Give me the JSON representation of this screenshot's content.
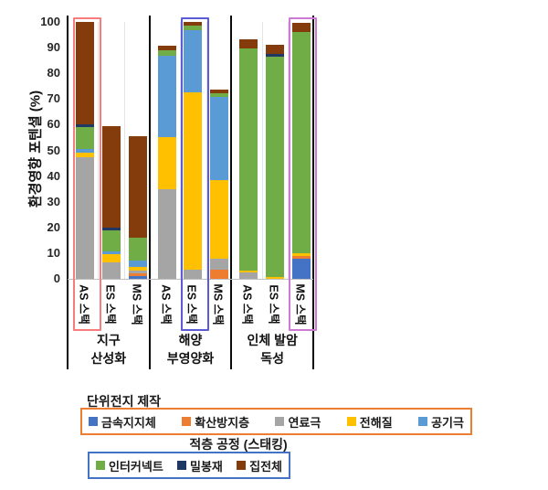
{
  "chart_data": {
    "type": "bar",
    "stacked": true,
    "title": "",
    "xlabel": "",
    "ylabel": "환경영향 포텐셜 (%)",
    "ylim": [
      0,
      100
    ],
    "yticks": [
      0,
      10,
      20,
      30,
      40,
      50,
      60,
      70,
      80,
      90,
      100
    ],
    "grid": false,
    "legend_position": "bottom",
    "series_order": [
      "금속지지체",
      "확산방지층",
      "연료극",
      "전해질",
      "공기극",
      "인터커넥트",
      "밀봉재",
      "집전체"
    ],
    "series_colors": {
      "금속지지체": "#4472C4",
      "확산방지층": "#ED7D31",
      "연료극": "#A5A5A5",
      "전해질": "#FFC000",
      "공기극": "#5B9BD5",
      "인터커넥트": "#70AD47",
      "밀봉재": "#1F3864",
      "집전체": "#843C0C"
    },
    "groups": [
      {
        "label_lines": [
          "지구",
          "산성화"
        ],
        "bars": [
          {
            "label": "AS 스택",
            "highlight_box": "#F87C7C",
            "values": {
              "연료극": 47.5,
              "전해질": 1.5,
              "공기극": 1.5,
              "인터커넥트": 8.5,
              "밀봉재": 1,
              "집전체": 40
            }
          },
          {
            "label": "ES 스택",
            "values": {
              "연료극": 6.5,
              "전해질": 3,
              "공기극": 1,
              "인터커넥트": 8.5,
              "밀봉재": 1,
              "집전체": 39.5
            }
          },
          {
            "label": "MS 스택",
            "values": {
              "금속지지체": 1,
              "확산방지층": 1,
              "연료극": 1.3,
              "전해질": 1.4,
              "공기극": 2.3,
              "인터커넥트": 9,
              "집전체": 39.5
            }
          }
        ]
      },
      {
        "label_lines": [
          "해양",
          "부영양화"
        ],
        "bars": [
          {
            "label": "AS 스택",
            "values": {
              "연료극": 35,
              "전해질": 20.2,
              "공기극": 31.8,
              "인터커넥트": 2,
              "집전체": 1.6
            }
          },
          {
            "label": "ES 스택",
            "highlight_box": "#5B5BD5",
            "values": {
              "연료극": 3.6,
              "전해질": 68.9,
              "공기극": 24.2,
              "인터커넥트": 1.8,
              "집전체": 1.5
            }
          },
          {
            "label": "MS 스택",
            "values": {
              "확산방지층": 3.6,
              "연료극": 4.1,
              "전해질": 30.8,
              "공기극": 32.4,
              "인터커넥트": 1.2,
              "집전체": 1.4
            }
          }
        ]
      },
      {
        "label_lines": [
          "인체 발암",
          "독성"
        ],
        "bars": [
          {
            "label": "AS 스택",
            "values": {
              "연료극": 2.4,
              "전해질": 0.9,
              "인터커넥트": 86.4,
              "집전체": 3.5
            }
          },
          {
            "label": "ES 스택",
            "values": {
              "전해질": 0.8,
              "인터커넥트": 85.7,
              "밀봉재": 1,
              "집전체": 3.5
            }
          },
          {
            "label": "MS 스택",
            "highlight_box": "#CC7AD4",
            "values": {
              "금속지지체": 8,
              "확산방지층": 0.8,
              "전해질": 1.2,
              "인터커넥트": 86,
              "집전체": 3.6
            }
          }
        ]
      }
    ]
  },
  "legend": {
    "cell": {
      "title": "단위전지 제작",
      "border_color": "#ED7D31",
      "items": [
        {
          "label": "금속지지체",
          "color": "#4472C4"
        },
        {
          "label": "확산방지층",
          "color": "#ED7D31"
        },
        {
          "label": "연료극",
          "color": "#A5A5A5"
        },
        {
          "label": "전해질",
          "color": "#FFC000"
        },
        {
          "label": "공기극",
          "color": "#5B9BD5"
        }
      ]
    },
    "stacking": {
      "title": "적층 공정 (스태킹)",
      "border_color": "#4472C4",
      "items": [
        {
          "label": "인터커넥트",
          "color": "#70AD47"
        },
        {
          "label": "밀봉재",
          "color": "#1F3864"
        },
        {
          "label": "집전체",
          "color": "#843C0C"
        }
      ]
    }
  }
}
